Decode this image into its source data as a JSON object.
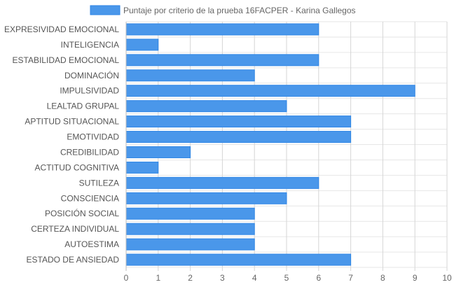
{
  "chart_data": {
    "type": "bar",
    "orientation": "horizontal",
    "title": "",
    "xlabel": "",
    "ylabel": "",
    "legend_position": "top",
    "grid": true,
    "xlim": [
      0,
      10
    ],
    "x_ticks": [
      "0",
      "1",
      "2",
      "3",
      "4",
      "5",
      "6",
      "7",
      "8",
      "9",
      "10"
    ],
    "categories": [
      "EXPRESIVIDAD EMOCIONAL",
      "INTELIGENCIA",
      "ESTABILIDAD EMOCIONAL",
      "DOMINACIÓN",
      "IMPULSIVIDAD",
      "LEALTAD GRUPAL",
      "APTITUD SITUACIONAL",
      "EMOTIVIDAD",
      "CREDIBILIDAD",
      "ACTITUD COGNITIVA",
      "SUTILEZA",
      "CONSCIENCIA",
      "POSICIÓN SOCIAL",
      "CERTEZA INDIVIDUAL",
      "AUTOESTIMA",
      "ESTADO DE ANSIEDAD"
    ],
    "series": [
      {
        "name": "Puntaje por criterio de la prueba 16FACPER - Karina Gallegos",
        "values": [
          6,
          1,
          6,
          4,
          9,
          5,
          7,
          7,
          2,
          1,
          6,
          5,
          4,
          4,
          4,
          7
        ],
        "color": "#4a97ea",
        "border_color": "#2f86e6"
      }
    ]
  }
}
